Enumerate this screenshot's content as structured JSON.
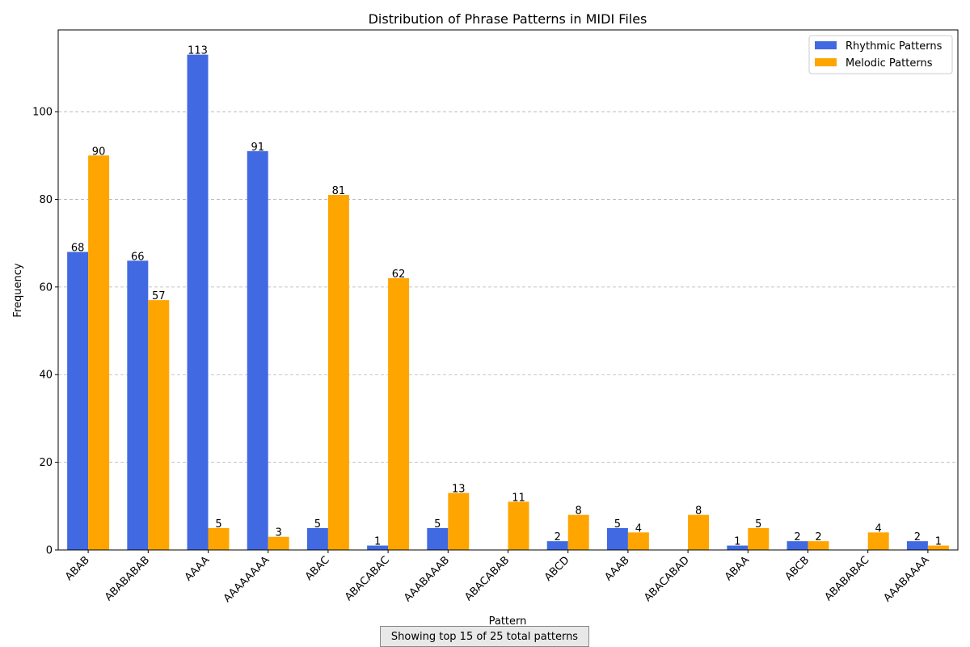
{
  "chart_data": {
    "type": "bar",
    "title": "Distribution of Phrase Patterns in MIDI Files",
    "xlabel": "Pattern",
    "ylabel": "Frequency",
    "ylim": [
      0,
      118.65
    ],
    "yticks": [
      0,
      20,
      40,
      60,
      80,
      100
    ],
    "grid": "y-dashed",
    "legend_position": "top-right",
    "categories": [
      "ABAB",
      "ABABABAB",
      "AAAA",
      "AAAAAAAA",
      "ABAC",
      "ABACABAC",
      "AAABAAAB",
      "ABACABAB",
      "ABCD",
      "AAAB",
      "ABACABAD",
      "ABAA",
      "ABCB",
      "ABABABAC",
      "AAABAAAA"
    ],
    "series": [
      {
        "name": "Rhythmic Patterns",
        "color": "#4169e1",
        "values": [
          68,
          66,
          113,
          91,
          5,
          1,
          5,
          0,
          2,
          5,
          0,
          1,
          2,
          0,
          2
        ]
      },
      {
        "name": "Melodic Patterns",
        "color": "#ffa500",
        "values": [
          90,
          57,
          5,
          3,
          81,
          62,
          13,
          11,
          8,
          4,
          8,
          5,
          2,
          4,
          1
        ]
      }
    ],
    "annotation": "Showing top 15 of 25 total patterns"
  }
}
